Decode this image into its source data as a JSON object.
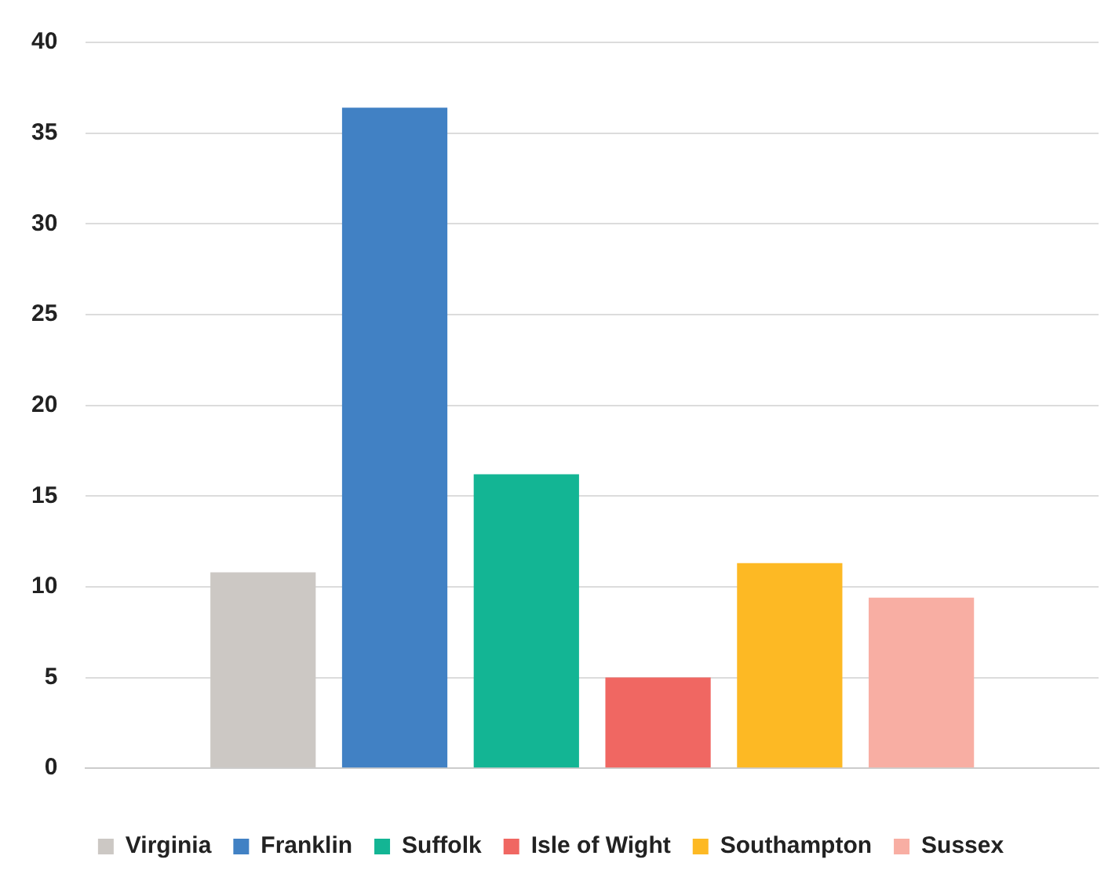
{
  "chart_data": {
    "type": "bar",
    "categories": [
      null
    ],
    "series": [
      {
        "name": "Virginia",
        "color": "#ccc8c4",
        "values": [
          10.8
        ]
      },
      {
        "name": "Franklin",
        "color": "#4181c4",
        "values": [
          36.4
        ]
      },
      {
        "name": "Suffolk",
        "color": "#13b594",
        "values": [
          16.2
        ]
      },
      {
        "name": "Isle of Wight",
        "color": "#f06762",
        "values": [
          5.0
        ]
      },
      {
        "name": "Southampton",
        "color": "#fdb924",
        "values": [
          11.3
        ]
      },
      {
        "name": "Sussex",
        "color": "#f8aea3",
        "values": [
          9.4
        ]
      }
    ],
    "ylim": [
      0,
      40
    ],
    "yticks": [
      0,
      5,
      10,
      15,
      20,
      25,
      30,
      35,
      40
    ],
    "grid": "y",
    "legend": "bottom"
  }
}
